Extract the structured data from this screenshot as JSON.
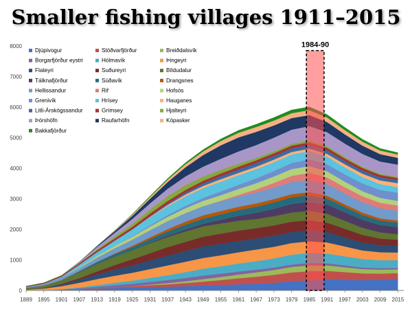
{
  "title": "Smaller fishing villages 1911–2015",
  "chart_data": {
    "type": "area",
    "stacked": true,
    "title": "Smaller fishing villages 1911–2015",
    "ylim": [
      0,
      8000
    ],
    "y_ticks": [
      0,
      1000,
      2000,
      3000,
      4000,
      5000,
      6000,
      7000,
      8000
    ],
    "x_range": [
      1889,
      2017
    ],
    "x_ticks": [
      1889,
      1895,
      1901,
      1907,
      1913,
      1919,
      1925,
      1931,
      1937,
      1943,
      1949,
      1955,
      1961,
      1967,
      1973,
      1979,
      1985,
      1991,
      1997,
      2003,
      2009,
      2015
    ],
    "legend_position": "top-left",
    "highlight": {
      "label": "1984-90",
      "from": 1984,
      "to": 1990
    },
    "x": [
      1889,
      1895,
      1901,
      1907,
      1913,
      1919,
      1925,
      1931,
      1937,
      1943,
      1949,
      1955,
      1961,
      1967,
      1973,
      1979,
      1985,
      1991,
      1997,
      2003,
      2009,
      2015
    ],
    "series": [
      {
        "name": "Djúpivogur",
        "color": "#4472c4",
        "values": [
          0,
          0,
          20,
          40,
          60,
          80,
          100,
          110,
          120,
          140,
          160,
          180,
          200,
          220,
          250,
          300,
          330,
          360,
          350,
          340,
          350,
          380
        ]
      },
      {
        "name": "Stöðvarfjörður",
        "color": "#c0504d",
        "values": [
          0,
          0,
          0,
          0,
          20,
          30,
          40,
          60,
          80,
          100,
          130,
          160,
          200,
          230,
          260,
          290,
          300,
          280,
          250,
          220,
          200,
          190
        ]
      },
      {
        "name": "Breiðdalsvík",
        "color": "#9bbb59",
        "values": [
          0,
          0,
          0,
          0,
          0,
          0,
          0,
          20,
          40,
          60,
          80,
          100,
          120,
          140,
          160,
          180,
          190,
          180,
          160,
          140,
          130,
          120
        ]
      },
      {
        "name": "Borgarfjörður eystri",
        "color": "#8064a2",
        "values": [
          0,
          0,
          20,
          30,
          40,
          60,
          80,
          90,
          100,
          110,
          120,
          110,
          100,
          90,
          80,
          80,
          80,
          70,
          60,
          50,
          50,
          50
        ]
      },
      {
        "name": "Hólmavík",
        "color": "#4bacc6",
        "values": [
          0,
          0,
          0,
          30,
          50,
          80,
          100,
          130,
          160,
          190,
          220,
          240,
          260,
          280,
          300,
          320,
          330,
          320,
          300,
          280,
          260,
          250
        ]
      },
      {
        "name": "Þingeyri",
        "color": "#f79646",
        "values": [
          30,
          60,
          100,
          150,
          200,
          230,
          260,
          290,
          320,
          340,
          350,
          360,
          370,
          380,
          380,
          380,
          380,
          360,
          320,
          280,
          260,
          250
        ]
      },
      {
        "name": "Flateyri",
        "color": "#2c4d75",
        "values": [
          0,
          20,
          60,
          100,
          150,
          200,
          240,
          280,
          320,
          350,
          380,
          380,
          370,
          360,
          360,
          360,
          360,
          340,
          300,
          260,
          230,
          220
        ]
      },
      {
        "name": "Suðureyri",
        "color": "#772c2a",
        "values": [
          0,
          0,
          20,
          50,
          100,
          150,
          200,
          240,
          280,
          300,
          320,
          330,
          340,
          340,
          340,
          340,
          330,
          310,
          280,
          250,
          220,
          200
        ]
      },
      {
        "name": "Bíldudalur",
        "color": "#5f7530",
        "values": [
          50,
          80,
          120,
          200,
          250,
          280,
          300,
          320,
          330,
          340,
          340,
          330,
          320,
          300,
          300,
          300,
          300,
          290,
          260,
          230,
          200,
          180
        ]
      },
      {
        "name": "Tálknafjörður",
        "color": "#4d3b62",
        "values": [
          0,
          0,
          0,
          0,
          0,
          0,
          0,
          20,
          40,
          60,
          80,
          120,
          160,
          200,
          240,
          280,
          300,
          300,
          280,
          260,
          240,
          230
        ]
      },
      {
        "name": "Súðavík",
        "color": "#276a7c",
        "values": [
          0,
          0,
          0,
          30,
          60,
          80,
          100,
          120,
          140,
          160,
          170,
          180,
          190,
          200,
          210,
          220,
          220,
          200,
          180,
          160,
          150,
          150
        ]
      },
      {
        "name": "Drangsnes",
        "color": "#b65708",
        "values": [
          0,
          0,
          0,
          0,
          0,
          20,
          40,
          60,
          80,
          100,
          110,
          110,
          110,
          110,
          110,
          100,
          100,
          90,
          80,
          80,
          70,
          70
        ]
      },
      {
        "name": "Hellissandur",
        "color": "#729aca",
        "values": [
          40,
          60,
          80,
          100,
          140,
          170,
          200,
          230,
          260,
          280,
          300,
          320,
          340,
          360,
          380,
          400,
          400,
          380,
          360,
          340,
          330,
          320
        ]
      },
      {
        "name": "Rif",
        "color": "#e07b78",
        "values": [
          0,
          0,
          0,
          0,
          0,
          0,
          0,
          0,
          0,
          0,
          0,
          20,
          50,
          100,
          150,
          200,
          230,
          220,
          200,
          190,
          180,
          170
        ]
      },
      {
        "name": "Hofsós",
        "color": "#b2d17c",
        "values": [
          0,
          0,
          0,
          30,
          60,
          80,
          100,
          120,
          140,
          160,
          170,
          180,
          190,
          200,
          210,
          220,
          220,
          200,
          180,
          170,
          160,
          150
        ]
      },
      {
        "name": "Grenivík",
        "color": "#6f8fcd",
        "values": [
          0,
          0,
          0,
          0,
          0,
          0,
          20,
          40,
          60,
          80,
          100,
          120,
          140,
          160,
          180,
          200,
          220,
          230,
          240,
          250,
          260,
          270
        ]
      },
      {
        "name": "Hrísey",
        "color": "#5bc2e0",
        "values": [
          0,
          0,
          30,
          80,
          120,
          170,
          220,
          260,
          290,
          310,
          320,
          320,
          310,
          300,
          290,
          280,
          270,
          250,
          230,
          210,
          190,
          180
        ]
      },
      {
        "name": "Hauganes",
        "color": "#f9b27a",
        "values": [
          0,
          0,
          0,
          0,
          0,
          0,
          0,
          20,
          40,
          60,
          70,
          80,
          80,
          80,
          80,
          80,
          80,
          90,
          100,
          110,
          120,
          130
        ]
      },
      {
        "name": "Litli-Árskógssandur",
        "color": "#3a6ba5",
        "values": [
          0,
          0,
          0,
          0,
          0,
          0,
          0,
          20,
          40,
          60,
          80,
          100,
          110,
          120,
          120,
          120,
          120,
          110,
          100,
          100,
          100,
          100
        ]
      },
      {
        "name": "Grímsey",
        "color": "#a03533",
        "values": [
          20,
          30,
          40,
          50,
          60,
          70,
          80,
          90,
          90,
          90,
          90,
          90,
          90,
          90,
          90,
          90,
          90,
          90,
          90,
          90,
          80,
          70
        ]
      },
      {
        "name": "Hjalteyri",
        "color": "#87a840",
        "values": [
          0,
          0,
          0,
          0,
          30,
          60,
          100,
          130,
          160,
          160,
          140,
          120,
          100,
          80,
          70,
          60,
          60,
          50,
          50,
          40,
          40,
          40
        ]
      },
      {
        "name": "Þórshöfn",
        "color": "#a897c6",
        "values": [
          0,
          0,
          0,
          40,
          80,
          120,
          160,
          200,
          240,
          280,
          320,
          360,
          400,
          420,
          440,
          460,
          470,
          460,
          440,
          420,
          400,
          400
        ]
      },
      {
        "name": "Raufarhöfn",
        "color": "#1f3864",
        "values": [
          0,
          0,
          0,
          0,
          30,
          60,
          100,
          150,
          220,
          300,
          380,
          440,
          460,
          430,
          400,
          380,
          360,
          330,
          300,
          270,
          240,
          220
        ]
      },
      {
        "name": "Kópasker",
        "color": "#f4b183",
        "values": [
          0,
          0,
          0,
          0,
          0,
          20,
          40,
          60,
          80,
          100,
          120,
          140,
          150,
          160,
          160,
          160,
          160,
          150,
          140,
          130,
          120,
          110
        ]
      },
      {
        "name": "Bakkafjörður",
        "color": "#228b22",
        "values": [
          0,
          0,
          0,
          0,
          0,
          0,
          20,
          30,
          40,
          50,
          60,
          70,
          80,
          90,
          100,
          110,
          110,
          100,
          90,
          80,
          70,
          60
        ]
      }
    ]
  }
}
